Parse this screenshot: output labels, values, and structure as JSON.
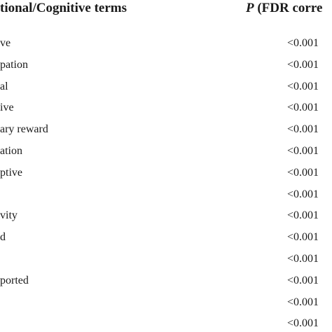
{
  "header": {
    "term_column": "tional/Cognitive terms",
    "p_symbol": "P",
    "p_column_rest": " (FDR corre"
  },
  "table": {
    "rows": [
      [
        "ve",
        "<0.001"
      ],
      [
        "pation",
        "<0.001"
      ],
      [
        "al",
        "<0.001"
      ],
      [
        "ive",
        "<0.001"
      ],
      [
        "ary reward",
        "<0.001"
      ],
      [
        "ation",
        "<0.001"
      ],
      [
        "ptive",
        "<0.001"
      ],
      [
        null,
        "<0.001"
      ],
      [
        "vity",
        "<0.001"
      ],
      [
        "d",
        "<0.001"
      ],
      [
        null,
        "<0.001"
      ],
      [
        "ported",
        "<0.001"
      ],
      [
        null,
        "<0.001"
      ],
      [
        null,
        "<0.001"
      ]
    ]
  }
}
